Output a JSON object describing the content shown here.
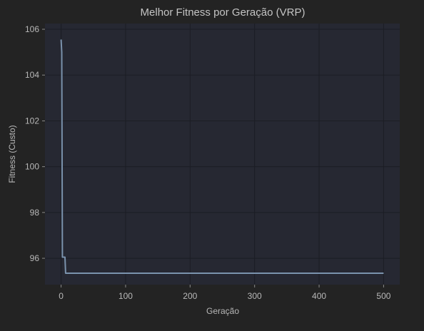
{
  "colors": {
    "figure_background": "#232323",
    "plot_background": "#262832",
    "grid": "#1b1d24",
    "line": "#7b93ad",
    "text": "#b8b8b8"
  },
  "chart_data": {
    "type": "line",
    "title": "Melhor Fitness por Geração (VRP)",
    "xlabel": "Geração",
    "ylabel": "Fitness (Custo)",
    "xlim": [
      -25,
      525
    ],
    "ylim": [
      94.85,
      106.25
    ],
    "xticks": [
      0,
      100,
      200,
      300,
      400,
      500
    ],
    "yticks": [
      96,
      98,
      100,
      102,
      104,
      106
    ],
    "grid": true,
    "series": [
      {
        "color": "#7b93ad",
        "x": [
          0,
          1,
          2,
          3,
          4,
          5,
          6,
          7,
          8,
          9,
          10,
          500
        ],
        "y": [
          105.55,
          105.0,
          96.05,
          96.05,
          96.05,
          96.05,
          96.05,
          95.35,
          95.35,
          95.35,
          95.35,
          95.35
        ]
      }
    ]
  }
}
